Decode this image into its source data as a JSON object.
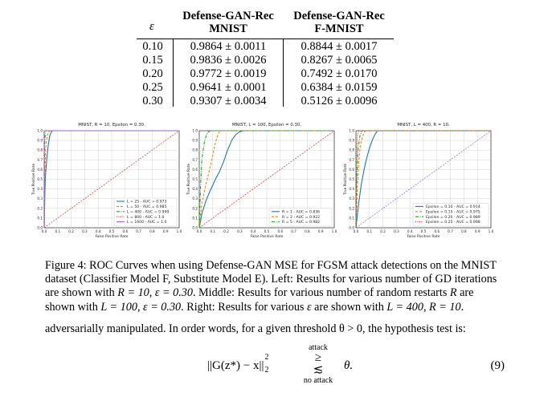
{
  "table": {
    "eps_header": "ε",
    "col1_header_line1": "Defense-GAN-Rec",
    "col1_header_line2": "MNIST",
    "col2_header_line1": "Defense-GAN-Rec",
    "col2_header_line2": "F-MNIST",
    "rows": [
      {
        "eps": "0.10",
        "mnist": "0.9864 ± 0.0011",
        "fmnist": "0.8844 ± 0.0017"
      },
      {
        "eps": "0.15",
        "mnist": "0.9836 ± 0.0026",
        "fmnist": "0.8267 ± 0.0065"
      },
      {
        "eps": "0.20",
        "mnist": "0.9772 ± 0.0019",
        "fmnist": "0.7492 ± 0.0170"
      },
      {
        "eps": "0.25",
        "mnist": "0.9641 ± 0.0001",
        "fmnist": "0.6384 ± 0.0159"
      },
      {
        "eps": "0.30",
        "mnist": "0.9307 ± 0.0034",
        "fmnist": "0.5126 ± 0.0096"
      }
    ]
  },
  "chart_data": [
    {
      "type": "line",
      "title": "MNIST, R = 10, Epsilon = 0.30.",
      "xlabel": "False Positive Rate",
      "ylabel": "True Positive Rate",
      "xlim": [
        0,
        1
      ],
      "ylim": [
        0,
        1
      ],
      "ticks": [
        "0.0",
        "0.1",
        "0.2",
        "0.3",
        "0.4",
        "0.5",
        "0.6",
        "0.7",
        "0.8",
        "0.9",
        "1.0"
      ],
      "grid": true,
      "legend_position": "lower-right",
      "series": [
        {
          "name": "L = 25 - AUC = 0.973",
          "color": "#1f77b4",
          "dash": "solid",
          "x": [
            0,
            0.005,
            0.01,
            0.02,
            0.03,
            0.04,
            0.05,
            0.06,
            1.0
          ],
          "y": [
            0,
            0.35,
            0.55,
            0.72,
            0.85,
            0.94,
            0.98,
            1.0,
            1.0
          ]
        },
        {
          "name": "L = 50 - AUC = 0.985",
          "color": "#ff7f0e",
          "dash": "dashed",
          "x": [
            0,
            0.005,
            0.01,
            0.02,
            0.03,
            0.04,
            1.0
          ],
          "y": [
            0,
            0.55,
            0.8,
            0.93,
            0.98,
            1.0,
            1.0
          ]
        },
        {
          "name": "L = 400 - AUC = 0.999",
          "color": "#2ca02c",
          "dash": "dashdot",
          "x": [
            0,
            0.003,
            0.008,
            0.015,
            1.0
          ],
          "y": [
            0,
            0.85,
            0.98,
            1.0,
            1.0
          ]
        },
        {
          "name": "L = 800 - AUC = 1.0",
          "color": "#d62728",
          "dash": "dotted",
          "x": [
            0,
            0.0,
            1.0
          ],
          "y": [
            0,
            1.0,
            1.0
          ]
        },
        {
          "name": "L = 1600 - AUC = 1.0",
          "color": "#9467bd",
          "dash": "solid",
          "x": [
            0,
            0.0,
            1.0
          ],
          "y": [
            0,
            1.0,
            1.0
          ]
        }
      ],
      "diagonal_color": "#c0392b"
    },
    {
      "type": "line",
      "title": "MNIST, L = 100, Epsilon = 0.30.",
      "xlabel": "False Positive Rate",
      "ylabel": "True Positive Rate",
      "xlim": [
        0,
        1
      ],
      "ylim": [
        0,
        1
      ],
      "ticks": [
        "0.0",
        "0.1",
        "0.2",
        "0.3",
        "0.4",
        "0.5",
        "0.6",
        "0.7",
        "0.8",
        "0.9",
        "1.0"
      ],
      "grid": true,
      "legend_position": "lower-right",
      "series": [
        {
          "name": "R = 1 - AUC = 0.836",
          "color": "#1f77b4",
          "dash": "solid",
          "x": [
            0,
            0.02,
            0.05,
            0.08,
            0.12,
            0.15,
            0.18,
            0.21,
            0.24,
            0.27,
            0.3,
            0.33,
            1.0
          ],
          "y": [
            0,
            0.15,
            0.28,
            0.38,
            0.5,
            0.58,
            0.68,
            0.8,
            0.9,
            0.96,
            0.99,
            1.0,
            1.0
          ]
        },
        {
          "name": "R = 2 - AUC = 0.922",
          "color": "#ff7f0e",
          "dash": "dashed",
          "x": [
            0,
            0.02,
            0.05,
            0.08,
            0.1,
            0.12,
            0.14,
            0.16,
            1.0
          ],
          "y": [
            0,
            0.25,
            0.45,
            0.62,
            0.75,
            0.88,
            0.97,
            1.0,
            1.0
          ]
        },
        {
          "name": "R = 5 - AUC = 0.982",
          "color": "#2ca02c",
          "dash": "dashdot",
          "x": [
            0,
            0.01,
            0.02,
            0.04,
            0.06,
            0.08,
            1.0
          ],
          "y": [
            0,
            0.45,
            0.72,
            0.9,
            0.98,
            1.0,
            1.0
          ]
        }
      ],
      "diagonal_color": "#d62728"
    },
    {
      "type": "line",
      "title": "MNIST, L = 400, R = 10.",
      "xlabel": "False Positive Rate",
      "ylabel": "True Positive Rate",
      "xlim": [
        0,
        1
      ],
      "ylim": [
        0,
        1
      ],
      "ticks": [
        "0.0",
        "0.1",
        "0.2",
        "0.3",
        "0.4",
        "0.5",
        "0.6",
        "0.7",
        "0.8",
        "0.9",
        "1.0"
      ],
      "grid": true,
      "legend_position": "lower-right",
      "series": [
        {
          "name": "Epsilon = 0.10 - AUC = 0.914",
          "color": "#1f77b4",
          "dash": "solid",
          "x": [
            0,
            0.02,
            0.04,
            0.06,
            0.08,
            0.1,
            0.12,
            0.14,
            0.16,
            1.0
          ],
          "y": [
            0,
            0.25,
            0.45,
            0.6,
            0.72,
            0.82,
            0.9,
            0.96,
            1.0,
            1.0
          ]
        },
        {
          "name": "Epsilon = 0.15 - AUC = 0.975",
          "color": "#ff7f0e",
          "dash": "dashed",
          "x": [
            0,
            0.01,
            0.02,
            0.03,
            0.05,
            0.07,
            1.0
          ],
          "y": [
            0,
            0.4,
            0.65,
            0.82,
            0.95,
            1.0,
            1.0
          ]
        },
        {
          "name": "Epsilon = 0.20 - AUC = 0.989",
          "color": "#2ca02c",
          "dash": "dashdot",
          "x": [
            0,
            0.005,
            0.015,
            0.03,
            0.045,
            1.0
          ],
          "y": [
            0,
            0.5,
            0.8,
            0.95,
            1.0,
            1.0
          ]
        },
        {
          "name": "Epsilon = 0.25 - AUC = 0.998",
          "color": "#d62728",
          "dash": "dotted",
          "x": [
            0,
            0.005,
            0.01,
            0.02,
            1.0
          ],
          "y": [
            0,
            0.7,
            0.95,
            1.0,
            1.0
          ]
        }
      ],
      "diagonal_color": "#7b68ee"
    }
  ],
  "caption": {
    "line1": "Figure 4: ROC Curves when using Defense-GAN MSE for FGSM attack detections on the MNIST",
    "line2": "dataset (Classifier Model F, Substitute Model E). Left: Results for various number of GD iterations",
    "line3a": "are shown with ",
    "line3b": "R = 10, ε = 0.30",
    "line3c": ". Middle: Results for various number of random restarts ",
    "line3d": "R",
    "line3e": " are",
    "line4a": "shown with ",
    "line4b": "L = 100, ε = 0.30",
    "line4c": ". Right: Results for various ",
    "line4d": "ε",
    "line4e": " are shown with ",
    "line4f": "L = 400, R = 10",
    "line4g": "."
  },
  "paragraph": "adversarially manipulated. In order words, for a given threshold θ > 0, the hypothesis test is:",
  "equation": {
    "lhs": "||G(z*) − x||",
    "sup": "2",
    "sub": "2",
    "top": "attack",
    "bottom": "no attack",
    "rhs": "θ.",
    "number": "(9)"
  }
}
